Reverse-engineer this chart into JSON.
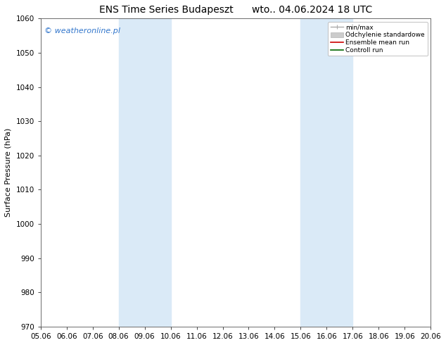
{
  "title": "ENS Time Series Budapeszt",
  "title2": "wto.. 04.06.2024 18 UTC",
  "ylabel": "Surface Pressure (hPa)",
  "watermark": "© weatheronline.pl",
  "ylim": [
    970,
    1060
  ],
  "yticks": [
    970,
    980,
    990,
    1000,
    1010,
    1020,
    1030,
    1040,
    1050,
    1060
  ],
  "xlim": [
    0,
    15
  ],
  "x_labels": [
    "05.06",
    "06.06",
    "07.06",
    "08.06",
    "09.06",
    "10.06",
    "11.06",
    "12.06",
    "13.06",
    "14.06",
    "15.06",
    "16.06",
    "17.06",
    "18.06",
    "19.06",
    "20.06"
  ],
  "shaded_regions": [
    {
      "start": 3,
      "end": 5
    },
    {
      "start": 10,
      "end": 12
    }
  ],
  "shaded_color": "#daeaf7",
  "legend_items": [
    {
      "label": "min/max",
      "color": "#aaaaaa",
      "lw": 1.0
    },
    {
      "label": "Odchylenie standardowe",
      "color": "#cccccc",
      "lw": 6
    },
    {
      "label": "Ensemble mean run",
      "color": "#cc0000",
      "lw": 1.2
    },
    {
      "label": "Controll run",
      "color": "#006600",
      "lw": 1.2
    }
  ],
  "background_color": "#ffffff",
  "plot_bg_color": "#ffffff",
  "border_color": "#555555",
  "title_fontsize": 10,
  "label_fontsize": 8,
  "tick_fontsize": 7.5,
  "watermark_color": "#3377cc",
  "watermark_fontsize": 8
}
